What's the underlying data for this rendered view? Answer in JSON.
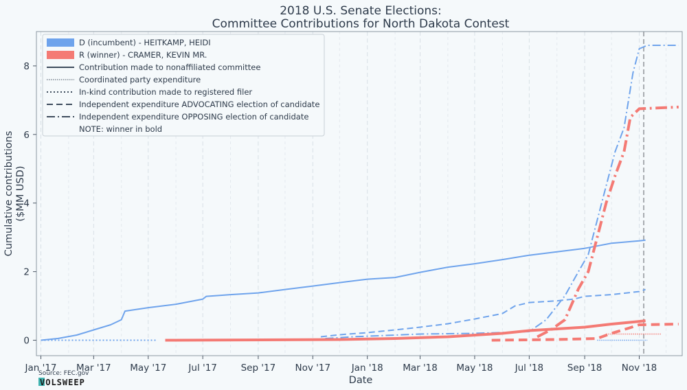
{
  "chart_data": {
    "type": "line",
    "title": [
      "2018 U.S. Senate Elections:",
      "Committee Contributions for North Dakota Contest"
    ],
    "xlabel": "Date",
    "ylabel": [
      "Cumulative contributions",
      "($MM USD)"
    ],
    "x_ticks": [
      "Jan '17",
      "Mar '17",
      "May '17",
      "Jul '17",
      "Sep '17",
      "Nov '17",
      "Jan '18",
      "Mar '18",
      "May '18",
      "Jul '18",
      "Sep '18",
      "Nov '18"
    ],
    "y_ticks": [
      "0",
      "2",
      "4",
      "6",
      "8"
    ],
    "ylim": [
      -0.45,
      9.0
    ],
    "grid": "vertical dashed",
    "election_marker": "2018-11-06",
    "legend_position": "top-left",
    "legend": [
      {
        "key": "D",
        "label": "D (incumbent) - HEITKAMP, HEIDI",
        "kind": "patch",
        "color": "#6ea3ec"
      },
      {
        "key": "R",
        "label": "R (winner) - CRAMER, KEVIN MR.",
        "kind": "patch",
        "color": "#f47a74"
      },
      {
        "key": "nonaffiliated",
        "label": "Contribution made to nonaffiliated committee",
        "kind": "line",
        "dash": "solid"
      },
      {
        "key": "coordinated",
        "label": "Coordinated party expenditure",
        "kind": "line",
        "dash": "densedot"
      },
      {
        "key": "inkind",
        "label": "In-kind contribution made to registered filer",
        "kind": "line",
        "dash": "dotted"
      },
      {
        "key": "advocating",
        "label": "Independent expenditure ADVOCATING election of candidate",
        "kind": "line",
        "dash": "dashed"
      },
      {
        "key": "opposing",
        "label": "Independent expenditure OPPOSING election of candidate",
        "kind": "line",
        "dash": "dashdot"
      },
      {
        "key": "note",
        "label": "NOTE: winner in bold",
        "kind": "none"
      }
    ],
    "series": [
      {
        "candidate": "D",
        "type": "nonaffiliated",
        "color": "#6ea3ec",
        "bold": false,
        "points": [
          [
            "2017-01-01",
            0
          ],
          [
            "2017-01-20",
            0.05
          ],
          [
            "2017-02-10",
            0.15
          ],
          [
            "2017-03-01",
            0.3
          ],
          [
            "2017-03-20",
            0.45
          ],
          [
            "2017-04-01",
            0.6
          ],
          [
            "2017-04-05",
            0.85
          ],
          [
            "2017-05-01",
            0.95
          ],
          [
            "2017-06-01",
            1.05
          ],
          [
            "2017-07-01",
            1.2
          ],
          [
            "2017-07-05",
            1.28
          ],
          [
            "2017-08-01",
            1.33
          ],
          [
            "2017-09-01",
            1.38
          ],
          [
            "2017-10-01",
            1.48
          ],
          [
            "2017-11-01",
            1.58
          ],
          [
            "2017-12-01",
            1.68
          ],
          [
            "2018-01-01",
            1.78
          ],
          [
            "2018-02-01",
            1.83
          ],
          [
            "2018-03-01",
            1.98
          ],
          [
            "2018-04-01",
            2.13
          ],
          [
            "2018-05-01",
            2.23
          ],
          [
            "2018-06-01",
            2.35
          ],
          [
            "2018-07-01",
            2.48
          ],
          [
            "2018-08-01",
            2.58
          ],
          [
            "2018-09-01",
            2.68
          ],
          [
            "2018-10-01",
            2.83
          ],
          [
            "2018-11-01",
            2.9
          ],
          [
            "2018-11-08",
            2.92
          ]
        ]
      },
      {
        "candidate": "D",
        "type": "inkind",
        "color": "#6ea3ec",
        "bold": false,
        "points": [
          [
            "2017-01-01",
            0
          ],
          [
            "2017-05-10",
            0
          ]
        ]
      },
      {
        "candidate": "D",
        "type": "advocating",
        "color": "#6ea3ec",
        "bold": false,
        "points": [
          [
            "2017-11-10",
            0.1
          ],
          [
            "2017-12-01",
            0.16
          ],
          [
            "2018-01-01",
            0.22
          ],
          [
            "2018-02-01",
            0.3
          ],
          [
            "2018-03-01",
            0.38
          ],
          [
            "2018-04-01",
            0.48
          ],
          [
            "2018-05-01",
            0.62
          ],
          [
            "2018-06-01",
            0.78
          ],
          [
            "2018-06-15",
            1.0
          ],
          [
            "2018-07-01",
            1.1
          ],
          [
            "2018-08-01",
            1.15
          ],
          [
            "2018-08-20",
            1.2
          ],
          [
            "2018-09-01",
            1.28
          ],
          [
            "2018-10-01",
            1.33
          ],
          [
            "2018-11-01",
            1.42
          ],
          [
            "2018-11-08",
            1.48
          ]
        ]
      },
      {
        "candidate": "D",
        "type": "opposing",
        "color": "#6ea3ec",
        "bold": false,
        "points": [
          [
            "2017-11-15",
            0.05
          ],
          [
            "2017-12-15",
            0.1
          ],
          [
            "2018-02-01",
            0.15
          ],
          [
            "2018-03-01",
            0.18
          ],
          [
            "2018-05-01",
            0.2
          ],
          [
            "2018-07-01",
            0.25
          ],
          [
            "2018-07-20",
            0.6
          ],
          [
            "2018-08-10",
            1.3
          ],
          [
            "2018-08-25",
            2.0
          ],
          [
            "2018-09-05",
            2.5
          ],
          [
            "2018-09-15",
            3.5
          ],
          [
            "2018-09-25",
            4.5
          ],
          [
            "2018-10-05",
            5.5
          ],
          [
            "2018-10-15",
            6.2
          ],
          [
            "2018-10-20",
            7.0
          ],
          [
            "2018-10-25",
            7.8
          ],
          [
            "2018-11-01",
            8.5
          ],
          [
            "2018-11-10",
            8.6
          ],
          [
            "2018-12-15",
            8.6
          ]
        ]
      },
      {
        "candidate": "D",
        "type": "coordinated",
        "color": "#6ea3ec",
        "bold": false,
        "points": [
          [
            "2018-09-15",
            0
          ],
          [
            "2018-11-10",
            0
          ]
        ]
      },
      {
        "candidate": "R",
        "type": "nonaffiliated",
        "color": "#f47a74",
        "bold": true,
        "points": [
          [
            "2017-05-20",
            0
          ],
          [
            "2017-12-01",
            0.02
          ],
          [
            "2018-02-01",
            0.05
          ],
          [
            "2018-04-01",
            0.1
          ],
          [
            "2018-06-01",
            0.2
          ],
          [
            "2018-07-01",
            0.28
          ],
          [
            "2018-08-01",
            0.33
          ],
          [
            "2018-09-01",
            0.38
          ],
          [
            "2018-10-01",
            0.47
          ],
          [
            "2018-11-01",
            0.55
          ],
          [
            "2018-11-08",
            0.57
          ]
        ]
      },
      {
        "candidate": "R",
        "type": "advocating",
        "color": "#f47a74",
        "bold": true,
        "points": [
          [
            "2018-05-20",
            0
          ],
          [
            "2018-08-01",
            0.02
          ],
          [
            "2018-09-15",
            0.05
          ],
          [
            "2018-10-01",
            0.2
          ],
          [
            "2018-10-20",
            0.35
          ],
          [
            "2018-11-01",
            0.45
          ],
          [
            "2018-12-15",
            0.47
          ]
        ]
      },
      {
        "candidate": "R",
        "type": "opposing",
        "color": "#f47a74",
        "bold": true,
        "points": [
          [
            "2018-07-10",
            0.1
          ],
          [
            "2018-07-25",
            0.3
          ],
          [
            "2018-08-10",
            0.6
          ],
          [
            "2018-08-25",
            1.5
          ],
          [
            "2018-09-05",
            2.0
          ],
          [
            "2018-09-15",
            3.0
          ],
          [
            "2018-09-25",
            4.0
          ],
          [
            "2018-10-05",
            4.8
          ],
          [
            "2018-10-15",
            5.5
          ],
          [
            "2018-10-22",
            6.5
          ],
          [
            "2018-11-01",
            6.75
          ],
          [
            "2018-12-15",
            6.8
          ]
        ]
      },
      {
        "candidate": "R",
        "type": "coordinated",
        "color": "#f47a74",
        "bold": false,
        "points": [
          [
            "2018-09-25",
            0.18
          ],
          [
            "2018-11-25",
            0.18
          ]
        ]
      }
    ]
  },
  "footer": {
    "source": "Source: FEC.gov",
    "brand": "VOLSWEEP"
  }
}
